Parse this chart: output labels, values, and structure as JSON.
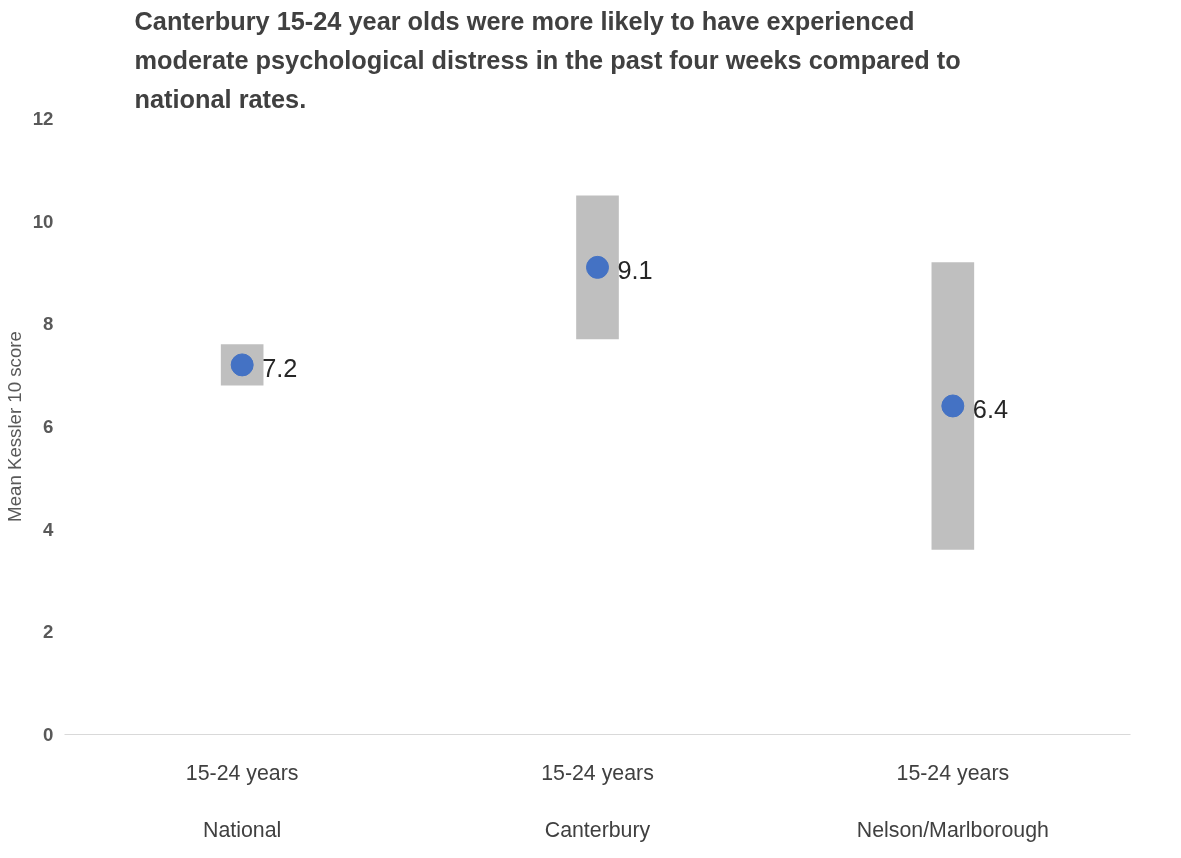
{
  "chart_data": {
    "type": "bar",
    "title": "Canterbury 15-24 year olds were more likely to have experienced moderate psychological distress in the past four weeks compared to national rates.",
    "ylabel": "Mean Kessler 10 score",
    "categories": [
      "15-24 years",
      "15-24 years",
      "15-24 years"
    ],
    "annotations": [
      "National",
      "Canterbury",
      "Nelson/Marlborough"
    ],
    "series": [
      {
        "color": "#bfbfbf",
        "base": [
          6.8,
          7.7,
          3.6
        ],
        "values": [
          0.8,
          2.8,
          5.6
        ]
      },
      {
        "type": "scatter",
        "color": "#4472c4",
        "values": [
          7.2,
          9.1,
          6.4
        ],
        "value_labels": [
          "7.2",
          "9.1",
          "6.4"
        ]
      }
    ],
    "ylim": [
      0,
      12
    ],
    "yticks": [
      0,
      2,
      4,
      6,
      8,
      10,
      12
    ],
    "grid": false,
    "marker": "circle"
  }
}
